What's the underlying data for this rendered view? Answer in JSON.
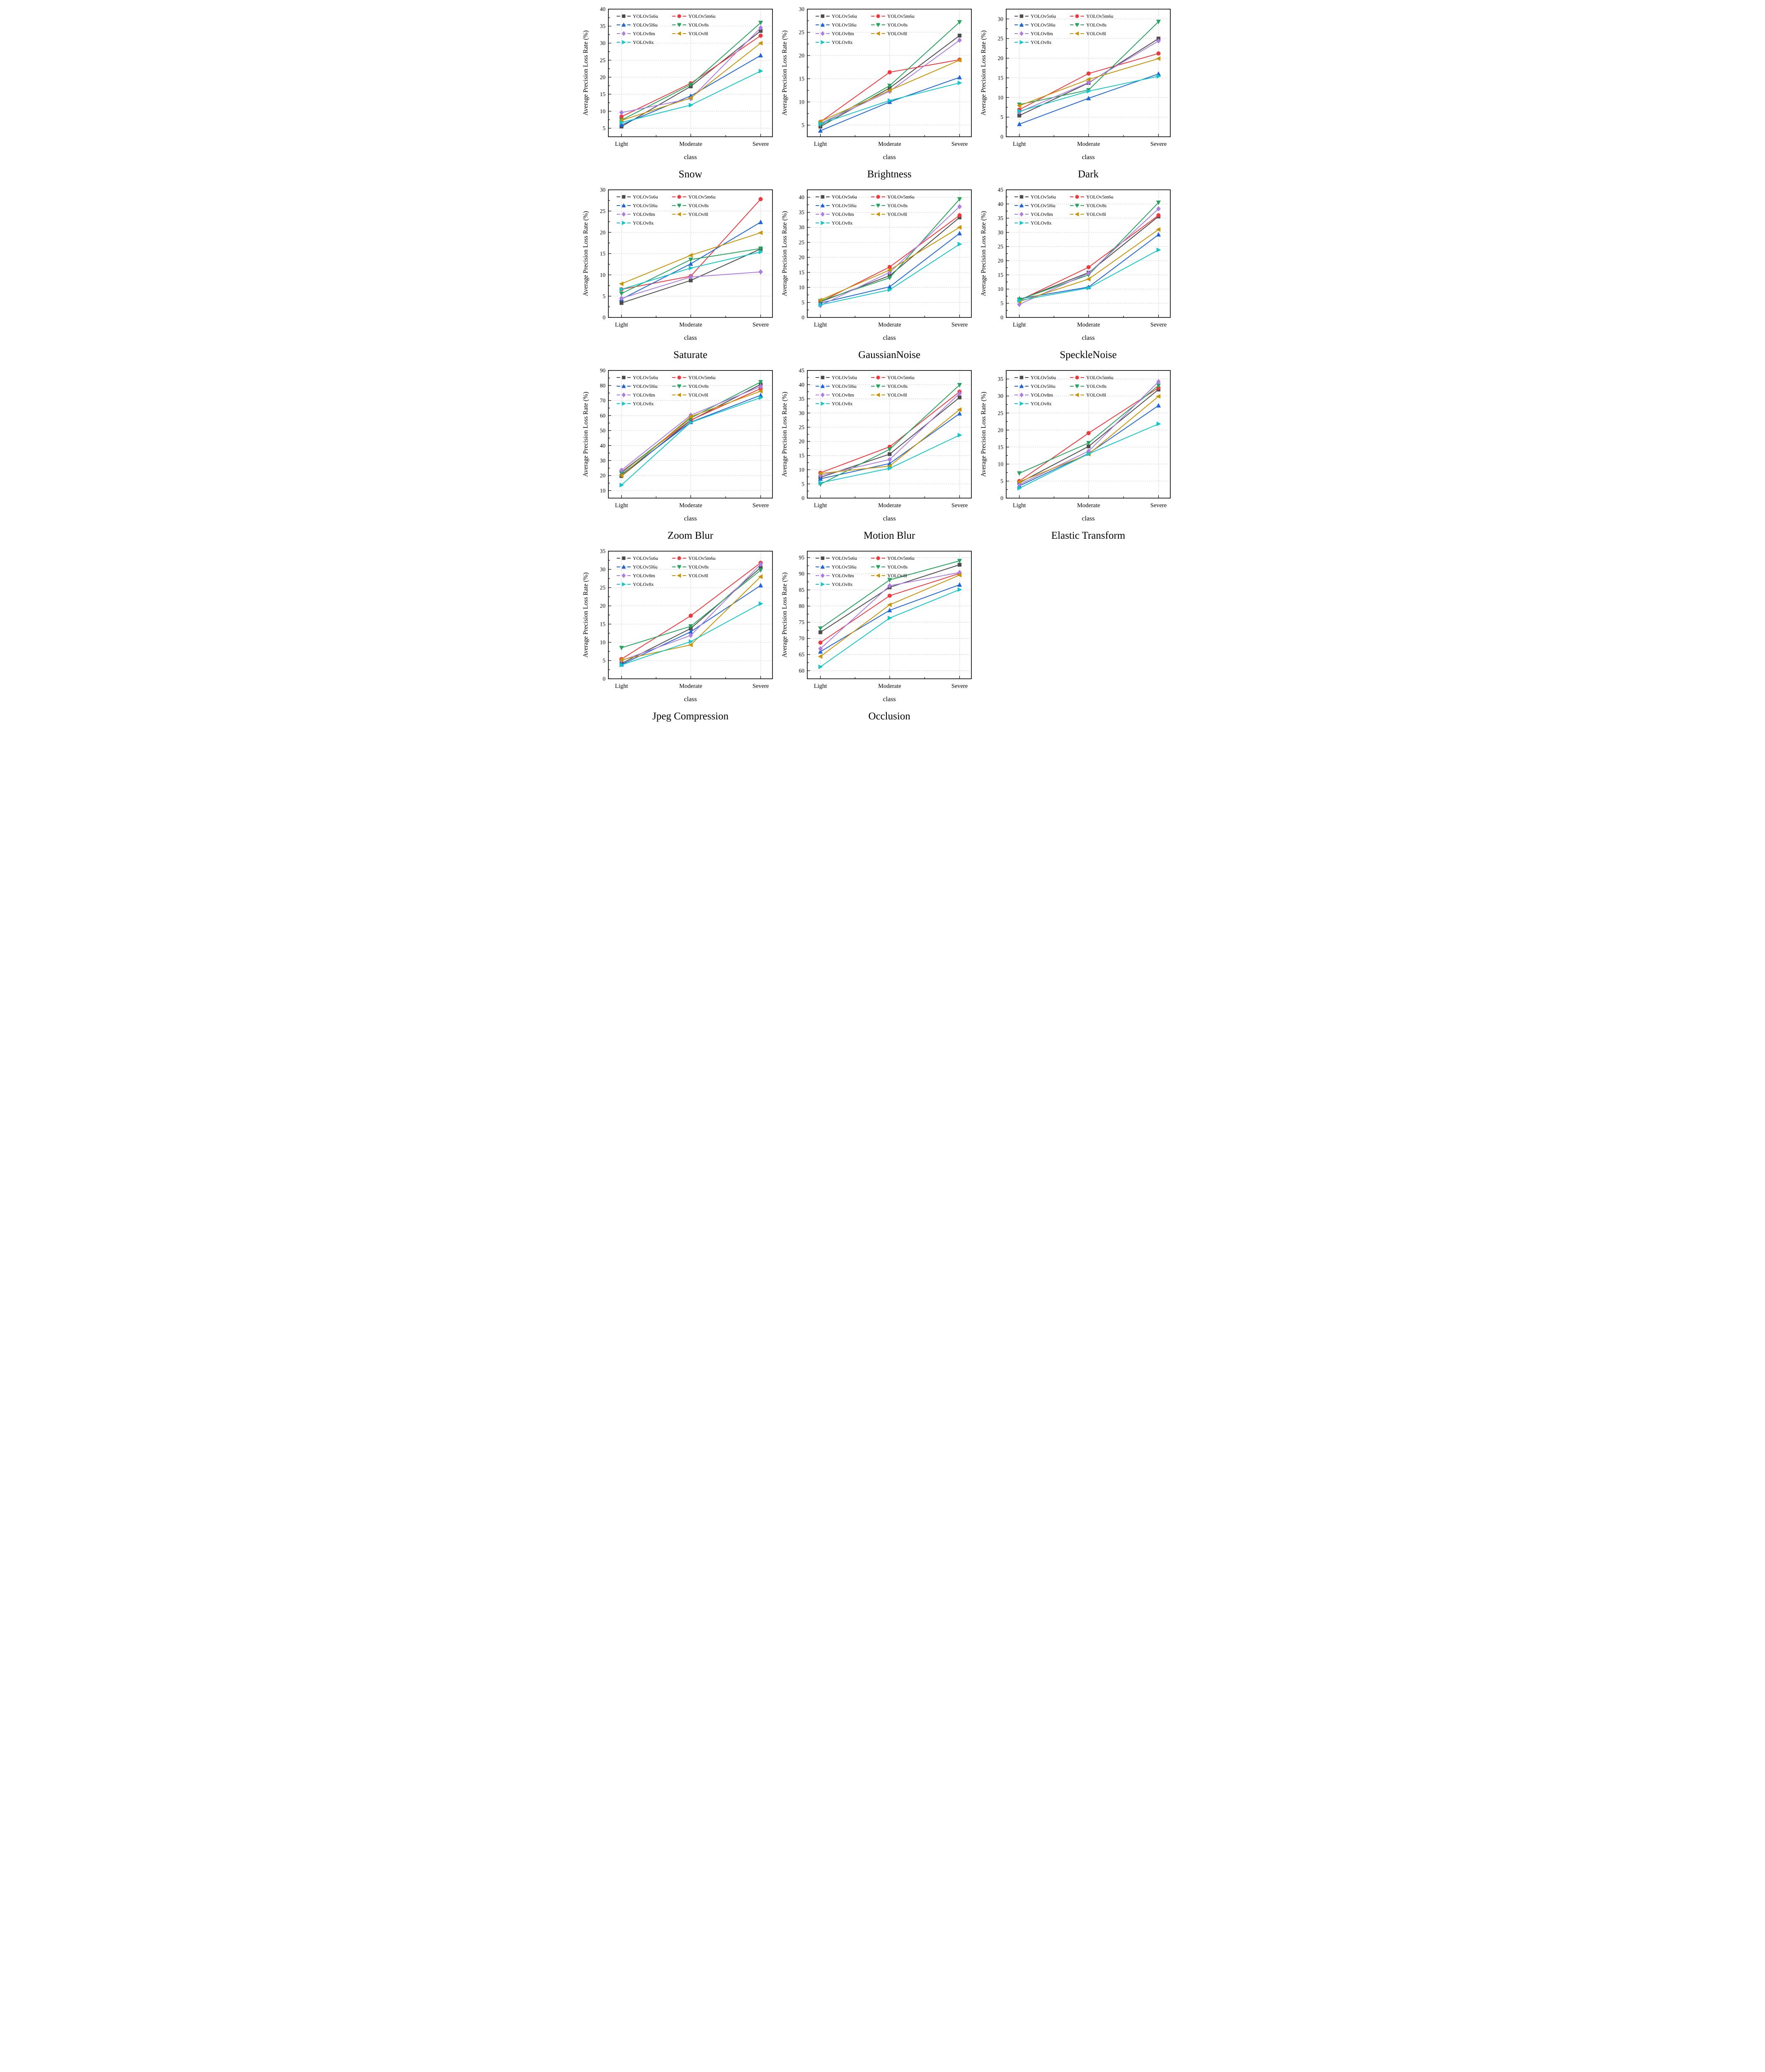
{
  "page": {
    "background": "#ffffff"
  },
  "common": {
    "xlabel": "class",
    "ylabel": "Average Precision Loss Rate (%)",
    "categories": [
      "Light",
      "Moderate",
      "Severe"
    ],
    "grid": true,
    "legend_position": "top-left",
    "series_meta": [
      {
        "name": "YOLOv5s6u",
        "color": "#4b4b4b",
        "marker": "square"
      },
      {
        "name": "YOLOv5m6u",
        "color": "#ee3a3e",
        "marker": "circle"
      },
      {
        "name": "YOLOv5l6u",
        "color": "#1f65d6",
        "marker": "triangle-up"
      },
      {
        "name": "YOLOv8s",
        "color": "#27a35e",
        "marker": "triangle-down"
      },
      {
        "name": "YOLOv8m",
        "color": "#ab7de0",
        "marker": "diamond"
      },
      {
        "name": "YOLOv8l",
        "color": "#c79408",
        "marker": "triangle-left"
      },
      {
        "name": "YOLOv8x",
        "color": "#13c6c8",
        "marker": "triangle-right"
      }
    ],
    "grid_color": "#b5b5b5",
    "axis_color": "#000000"
  },
  "chart_data": [
    {
      "type": "line",
      "title": "Snow",
      "ylim": [
        2.5,
        40
      ],
      "yticks": [
        5,
        10,
        15,
        20,
        25,
        30,
        35,
        40
      ],
      "series": [
        {
          "name": "YOLOv5s6u",
          "values": [
            5.5,
            17.3,
            33.6
          ]
        },
        {
          "name": "YOLOv5m6u",
          "values": [
            8.4,
            18.2,
            32.2
          ]
        },
        {
          "name": "YOLOv5l6u",
          "values": [
            6.0,
            14.5,
            26.4
          ]
        },
        {
          "name": "YOLOv8s",
          "values": [
            7.4,
            17.8,
            36.0
          ]
        },
        {
          "name": "YOLOv8m",
          "values": [
            9.6,
            13.7,
            34.5
          ]
        },
        {
          "name": "YOLOv8l",
          "values": [
            7.3,
            13.9,
            30.0
          ]
        },
        {
          "name": "YOLOv8x",
          "values": [
            6.7,
            11.8,
            21.8
          ]
        }
      ]
    },
    {
      "type": "line",
      "title": "Brightness",
      "ylim": [
        2.5,
        30
      ],
      "yticks": [
        5,
        10,
        15,
        20,
        25,
        30
      ],
      "series": [
        {
          "name": "YOLOv5s6u",
          "values": [
            4.7,
            13.0,
            24.3
          ]
        },
        {
          "name": "YOLOv5m6u",
          "values": [
            5.7,
            16.4,
            19.1
          ]
        },
        {
          "name": "YOLOv5l6u",
          "values": [
            3.8,
            10.0,
            15.3
          ]
        },
        {
          "name": "YOLOv8s",
          "values": [
            5.0,
            13.5,
            27.2
          ]
        },
        {
          "name": "YOLOv8m",
          "values": [
            5.4,
            12.3,
            23.3
          ]
        },
        {
          "name": "YOLOv8l",
          "values": [
            5.8,
            12.5,
            19.0
          ]
        },
        {
          "name": "YOLOv8x",
          "values": [
            5.3,
            10.3,
            14.1
          ]
        }
      ]
    },
    {
      "type": "line",
      "title": "Dark",
      "ylim": [
        0,
        32.5
      ],
      "yticks": [
        0,
        5,
        10,
        15,
        20,
        25,
        30
      ],
      "series": [
        {
          "name": "YOLOv5s6u",
          "values": [
            5.4,
            13.7,
            25.0
          ]
        },
        {
          "name": "YOLOv5m6u",
          "values": [
            6.9,
            16.1,
            21.2
          ]
        },
        {
          "name": "YOLOv5l6u",
          "values": [
            3.2,
            9.8,
            16.0
          ]
        },
        {
          "name": "YOLOv8s",
          "values": [
            8.2,
            11.9,
            29.3
          ]
        },
        {
          "name": "YOLOv8m",
          "values": [
            6.3,
            13.8,
            24.4
          ]
        },
        {
          "name": "YOLOv8l",
          "values": [
            7.9,
            14.6,
            19.9
          ]
        },
        {
          "name": "YOLOv8x",
          "values": [
            6.5,
            11.6,
            15.4
          ]
        }
      ]
    },
    {
      "type": "line",
      "title": "Saturate",
      "ylim": [
        0,
        30
      ],
      "yticks": [
        0,
        5,
        10,
        15,
        20,
        25,
        30
      ],
      "series": [
        {
          "name": "YOLOv5s6u",
          "values": [
            3.4,
            8.7,
            16.1
          ]
        },
        {
          "name": "YOLOv5m6u",
          "values": [
            6.6,
            9.7,
            27.8
          ]
        },
        {
          "name": "YOLOv5l6u",
          "values": [
            4.3,
            12.6,
            22.4
          ]
        },
        {
          "name": "YOLOv8s",
          "values": [
            5.6,
            13.6,
            16.2
          ]
        },
        {
          "name": "YOLOv8m",
          "values": [
            4.5,
            9.5,
            10.7
          ]
        },
        {
          "name": "YOLOv8l",
          "values": [
            7.9,
            14.6,
            19.9
          ]
        },
        {
          "name": "YOLOv8x",
          "values": [
            6.6,
            11.6,
            15.4
          ]
        }
      ]
    },
    {
      "type": "line",
      "title": "GaussianNoise",
      "ylim": [
        0,
        42.5
      ],
      "yticks": [
        0,
        5,
        10,
        15,
        20,
        25,
        30,
        35,
        40
      ],
      "series": [
        {
          "name": "YOLOv5s6u",
          "values": [
            5.2,
            13.9,
            33.3
          ]
        },
        {
          "name": "YOLOv5m6u",
          "values": [
            5.2,
            16.8,
            34.0
          ]
        },
        {
          "name": "YOLOv5l6u",
          "values": [
            4.8,
            10.2,
            28.0
          ]
        },
        {
          "name": "YOLOv8s",
          "values": [
            5.5,
            13.2,
            39.4
          ]
        },
        {
          "name": "YOLOv8m",
          "values": [
            4.0,
            15.0,
            36.9
          ]
        },
        {
          "name": "YOLOv8l",
          "values": [
            5.8,
            15.8,
            30.0
          ]
        },
        {
          "name": "YOLOv8x",
          "values": [
            4.2,
            9.2,
            24.4
          ]
        }
      ]
    },
    {
      "type": "line",
      "title": "SpeckleNoise",
      "ylim": [
        0,
        45
      ],
      "yticks": [
        0,
        5,
        10,
        15,
        20,
        25,
        30,
        35,
        40,
        45
      ],
      "series": [
        {
          "name": "YOLOv5s6u",
          "values": [
            6.2,
            15.8,
            35.6
          ]
        },
        {
          "name": "YOLOv5m6u",
          "values": [
            6.0,
            17.7,
            36.0
          ]
        },
        {
          "name": "YOLOv5l6u",
          "values": [
            6.6,
            10.7,
            29.2
          ]
        },
        {
          "name": "YOLOv8s",
          "values": [
            6.3,
            15.0,
            40.5
          ]
        },
        {
          "name": "YOLOv8m",
          "values": [
            4.6,
            15.6,
            38.3
          ]
        },
        {
          "name": "YOLOv8l",
          "values": [
            5.6,
            13.5,
            31.0
          ]
        },
        {
          "name": "YOLOv8x",
          "values": [
            6.0,
            10.4,
            23.8
          ]
        }
      ]
    },
    {
      "type": "line",
      "title": "Zoom Blur",
      "ylim": [
        5,
        90
      ],
      "yticks": [
        10,
        20,
        30,
        40,
        50,
        60,
        70,
        80,
        90
      ],
      "series": [
        {
          "name": "YOLOv5s6u",
          "values": [
            19.7,
            56.8,
            80.7
          ]
        },
        {
          "name": "YOLOv5m6u",
          "values": [
            22.5,
            57.0,
            77.9
          ]
        },
        {
          "name": "YOLOv5l6u",
          "values": [
            20.8,
            55.6,
            73.5
          ]
        },
        {
          "name": "YOLOv8s",
          "values": [
            21.8,
            58.3,
            82.3
          ]
        },
        {
          "name": "YOLOv8m",
          "values": [
            23.6,
            60.2,
            79.4
          ]
        },
        {
          "name": "YOLOv8l",
          "values": [
            20.0,
            59.3,
            76.2
          ]
        },
        {
          "name": "YOLOv8x",
          "values": [
            13.7,
            55.4,
            71.9
          ]
        }
      ]
    },
    {
      "type": "line",
      "title": "Motion Blur",
      "ylim": [
        0,
        45
      ],
      "yticks": [
        0,
        5,
        10,
        15,
        20,
        25,
        30,
        35,
        40,
        45
      ],
      "series": [
        {
          "name": "YOLOv5s6u",
          "values": [
            7.3,
            15.5,
            35.5
          ]
        },
        {
          "name": "YOLOv5m6u",
          "values": [
            8.9,
            18.1,
            37.5
          ]
        },
        {
          "name": "YOLOv5l6u",
          "values": [
            6.8,
            12.2,
            29.8
          ]
        },
        {
          "name": "YOLOv8s",
          "values": [
            4.9,
            17.2,
            39.9
          ]
        },
        {
          "name": "YOLOv8m",
          "values": [
            8.0,
            13.6,
            36.9
          ]
        },
        {
          "name": "YOLOv8l",
          "values": [
            8.7,
            11.3,
            31.2
          ]
        },
        {
          "name": "YOLOv8x",
          "values": [
            5.4,
            10.5,
            22.2
          ]
        }
      ]
    },
    {
      "type": "line",
      "title": "Elastic Transform",
      "ylim": [
        0,
        37.5
      ],
      "yticks": [
        0,
        5,
        10,
        15,
        20,
        25,
        30,
        35
      ],
      "series": [
        {
          "name": "YOLOv5s6u",
          "values": [
            4.5,
            15.2,
            31.9
          ]
        },
        {
          "name": "YOLOv5m6u",
          "values": [
            5.0,
            19.1,
            32.4
          ]
        },
        {
          "name": "YOLOv5l6u",
          "values": [
            3.6,
            13.1,
            27.2
          ]
        },
        {
          "name": "YOLOv8s",
          "values": [
            7.3,
            16.2,
            33.1
          ]
        },
        {
          "name": "YOLOv8m",
          "values": [
            4.0,
            13.8,
            34.2
          ]
        },
        {
          "name": "YOLOv8l",
          "values": [
            4.8,
            12.9,
            29.9
          ]
        },
        {
          "name": "YOLOv8x",
          "values": [
            2.9,
            13.0,
            21.8
          ]
        }
      ]
    },
    {
      "type": "line",
      "title": "Jpeg Compression",
      "ylim": [
        0,
        35
      ],
      "yticks": [
        0,
        5,
        10,
        15,
        20,
        25,
        30,
        35
      ],
      "series": [
        {
          "name": "YOLOv5s6u",
          "values": [
            4.2,
            13.8,
            30.5
          ]
        },
        {
          "name": "YOLOv5m6u",
          "values": [
            5.4,
            17.3,
            31.8
          ]
        },
        {
          "name": "YOLOv5l6u",
          "values": [
            3.9,
            12.9,
            25.6
          ]
        },
        {
          "name": "YOLOv8s",
          "values": [
            8.5,
            14.4,
            29.8
          ]
        },
        {
          "name": "YOLOv8m",
          "values": [
            5.0,
            11.9,
            31.4
          ]
        },
        {
          "name": "YOLOv8l",
          "values": [
            5.2,
            9.3,
            28.0
          ]
        },
        {
          "name": "YOLOv8x",
          "values": [
            3.8,
            10.2,
            20.6
          ]
        }
      ]
    },
    {
      "type": "line",
      "title": "Occlusion",
      "ylim": [
        57.5,
        97
      ],
      "yticks": [
        60,
        65,
        70,
        75,
        80,
        85,
        90,
        95
      ],
      "series": [
        {
          "name": "YOLOv5s6u",
          "values": [
            71.9,
            85.8,
            92.8
          ]
        },
        {
          "name": "YOLOv5m6u",
          "values": [
            68.7,
            83.2,
            90.1
          ]
        },
        {
          "name": "YOLOv5l6u",
          "values": [
            65.9,
            78.7,
            86.6
          ]
        },
        {
          "name": "YOLOv8s",
          "values": [
            73.1,
            88.1,
            94.0
          ]
        },
        {
          "name": "YOLOv8m",
          "values": [
            66.8,
            86.3,
            90.4
          ]
        },
        {
          "name": "YOLOv8l",
          "values": [
            64.4,
            80.4,
            89.6
          ]
        },
        {
          "name": "YOLOv8x",
          "values": [
            61.2,
            76.3,
            85.1
          ]
        }
      ]
    }
  ]
}
